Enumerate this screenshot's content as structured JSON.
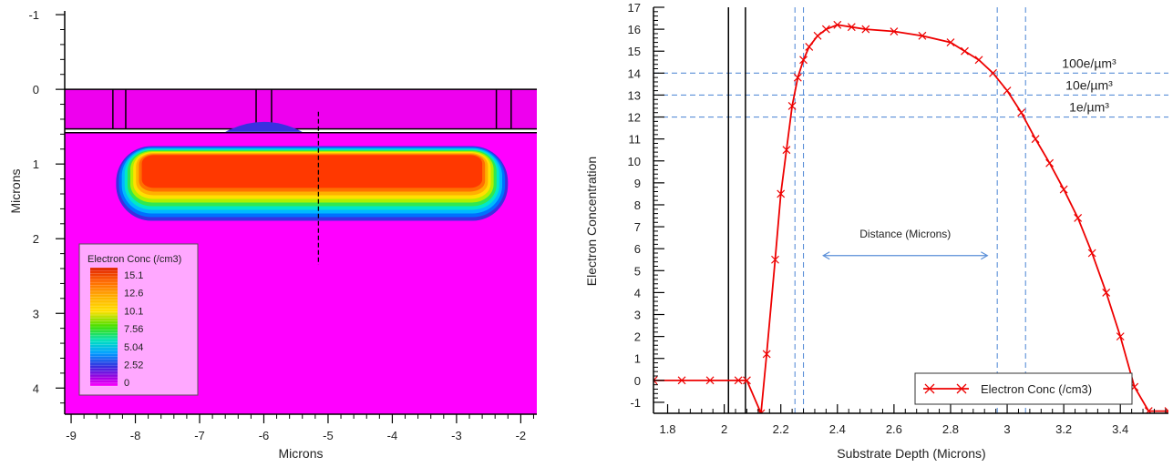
{
  "chart_data": [
    {
      "type": "heatmap",
      "title": "",
      "xlabel": "Microns",
      "ylabel": "Microns",
      "xlim": [
        -9.1,
        -1.75
      ],
      "ylim": [
        -1.05,
        4.35
      ],
      "x_ticks": [
        -9,
        -8,
        -7,
        -6,
        -5,
        -4,
        -3,
        -2
      ],
      "y_ticks": [
        -1,
        0,
        1,
        2,
        3,
        4
      ],
      "colors": {
        "oxide": "#ee00ee",
        "substrate": "#ff00ff",
        "background": "#ffffff"
      },
      "regions": {
        "oxide_top": 0,
        "oxide_bottom": 0.53,
        "substrate_top": 0.58
      },
      "gate_gaps": [
        [
          -8.35,
          -8.15
        ],
        [
          -6.12,
          -5.88
        ],
        [
          -2.38,
          -2.15
        ]
      ],
      "cutline": {
        "x": -5.15,
        "y_from": 0.3,
        "y_to": 2.35
      },
      "well": {
        "x_left": -7.9,
        "x_right": -2.6,
        "y_top": 0.88,
        "y_bottom": 1.32,
        "outer_margin": 0.4
      },
      "legend": {
        "title": "Electron Conc (/cm3)",
        "labels": [
          "15.1",
          "12.6",
          "10.1",
          "7.56",
          "5.04",
          "2.52",
          "0"
        ],
        "placement": "bottom-left"
      }
    },
    {
      "type": "line",
      "title": "",
      "xlabel": "Substrate Depth (Microns)",
      "ylabel": "Electron Concentration",
      "xlim": [
        1.75,
        3.57
      ],
      "ylim": [
        -1.5,
        17
      ],
      "x_ticks": [
        "1.8",
        "2",
        "2.2",
        "2.4",
        "2.6",
        "2.8",
        "3",
        "3.2",
        "3.4"
      ],
      "y_ticks": [
        -1,
        0,
        1,
        2,
        3,
        4,
        5,
        6,
        7,
        8,
        9,
        10,
        11,
        12,
        13,
        14,
        15,
        16,
        17
      ],
      "series": [
        {
          "name": "Electron Conc (/cm3)",
          "color": "#ee0000",
          "marker": "x",
          "x": [
            1.75,
            1.85,
            1.95,
            2.05,
            2.08,
            2.13,
            2.15,
            2.18,
            2.2,
            2.22,
            2.24,
            2.26,
            2.28,
            2.3,
            2.33,
            2.36,
            2.4,
            2.45,
            2.5,
            2.6,
            2.7,
            2.8,
            2.85,
            2.9,
            2.95,
            3.0,
            3.05,
            3.1,
            3.15,
            3.2,
            3.25,
            3.3,
            3.35,
            3.4,
            3.45,
            3.5,
            3.57
          ],
          "values": [
            0,
            0,
            0,
            0,
            0,
            -1.5,
            1.2,
            5.5,
            8.5,
            10.5,
            12.5,
            13.8,
            14.6,
            15.2,
            15.7,
            16.0,
            16.2,
            16.1,
            16.0,
            15.9,
            15.7,
            15.4,
            15.0,
            14.6,
            14.0,
            13.2,
            12.2,
            11.0,
            9.9,
            8.7,
            7.4,
            5.8,
            4.0,
            2.0,
            -0.3,
            -1.4,
            -1.4
          ]
        }
      ],
      "reference_lines": {
        "horizontal": [
          {
            "y": 14,
            "label": "100e/µm³"
          },
          {
            "y": 13,
            "label": "10e/µm³"
          },
          {
            "y": 12,
            "label": "1e/µm³"
          }
        ],
        "vertical_dashed": [
          2.25,
          2.28,
          2.965,
          3.065
        ],
        "vertical_solid": [
          2.015,
          2.075
        ]
      },
      "annotation": {
        "text": "Distance (Microns)",
        "arrow_from": 2.35,
        "arrow_to": 2.93,
        "y": 6.1
      },
      "legend": {
        "label": "Electron Conc (/cm3)",
        "placement": "bottom-right"
      }
    }
  ]
}
